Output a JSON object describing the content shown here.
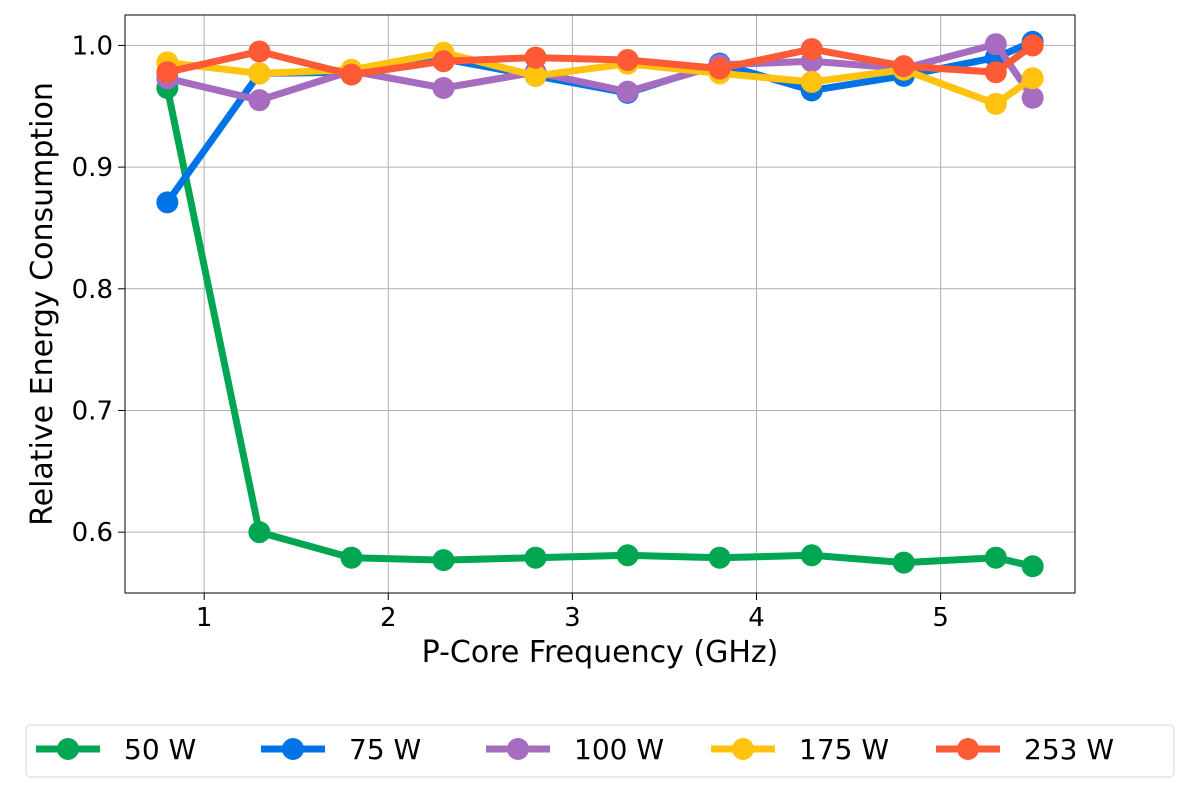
{
  "chart_data": {
    "type": "line",
    "xlabel": "P-Core Frequency (GHz)",
    "ylabel": "Relative Energy Consumption",
    "xlim": [
      0.57,
      5.73
    ],
    "ylim": [
      0.55,
      1.025
    ],
    "xticks": [
      1,
      2,
      3,
      4,
      5
    ],
    "yticks": [
      0.6,
      0.7,
      0.8,
      0.9,
      1.0
    ],
    "xtick_labels": [
      "1",
      "2",
      "3",
      "4",
      "5"
    ],
    "ytick_labels": [
      "0.6",
      "0.7",
      "0.8",
      "0.9",
      "1.0"
    ],
    "grid": true,
    "legend_position": "bottom-outside",
    "x": [
      0.8,
      1.3,
      1.8,
      2.3,
      2.8,
      3.3,
      3.8,
      4.3,
      4.8,
      5.3,
      5.5
    ],
    "series": [
      {
        "name": "50 W",
        "color": "#00a651",
        "values": [
          0.965,
          0.6,
          0.579,
          0.577,
          0.579,
          0.581,
          0.579,
          0.581,
          0.575,
          0.579,
          0.572
        ]
      },
      {
        "name": "75 W",
        "color": "#0073e6",
        "values": [
          0.871,
          0.977,
          0.978,
          0.989,
          0.975,
          0.961,
          0.985,
          0.963,
          0.975,
          0.99,
          1.003
        ]
      },
      {
        "name": "100 W",
        "color": "#a66cc0",
        "values": [
          0.973,
          0.955,
          0.979,
          0.965,
          0.978,
          0.962,
          0.984,
          0.987,
          0.981,
          1.001,
          0.957
        ]
      },
      {
        "name": "175 W",
        "color": "#ffc20e",
        "values": [
          0.986,
          0.977,
          0.98,
          0.994,
          0.975,
          0.985,
          0.977,
          0.97,
          0.98,
          0.952,
          0.973
        ]
      },
      {
        "name": "253 W",
        "color": "#ff5a36",
        "values": [
          0.978,
          0.995,
          0.976,
          0.987,
          0.99,
          0.988,
          0.981,
          0.997,
          0.983,
          0.978,
          1.0
        ]
      }
    ]
  }
}
